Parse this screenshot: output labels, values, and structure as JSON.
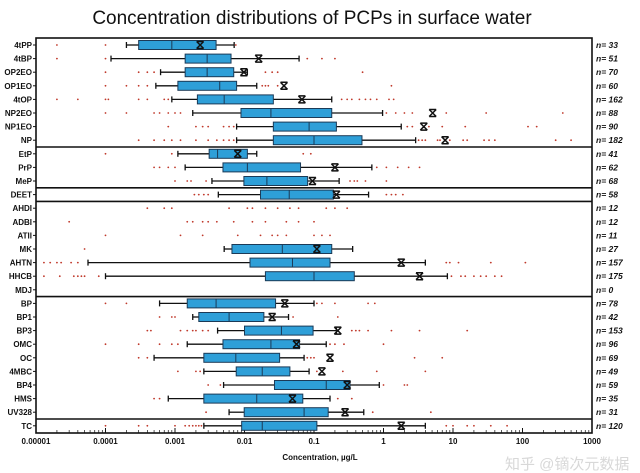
{
  "chart_data": {
    "type": "boxplot",
    "title": "Concentration distributions of PCPs in surface water",
    "xlabel": "Concentration, µg/L",
    "xscale": "log",
    "xlim": [
      1e-05,
      1000
    ],
    "xticks": [
      "0.00001",
      "0.0001",
      "0.001",
      "0.01",
      "0.1",
      "1",
      "10",
      "100",
      "1000"
    ],
    "grid": false,
    "colors": {
      "box": "#2e9fd8",
      "box_edge": "#1b3a57",
      "outlier": "#c0392b",
      "whisker": "#111111",
      "mean_marker": "#111111"
    },
    "groups_after": [
      "NP",
      "MeP",
      "DEET",
      "MDJ",
      "UV328"
    ],
    "series": [
      {
        "category": "4tPP",
        "n": "n= 33",
        "whisker_low": 0.0002,
        "q1": 0.0003,
        "median": 0.0009,
        "q3": 0.0039,
        "whisker_high": 0.0071,
        "mean": 0.0023,
        "outliers": [
          2e-05,
          0.0001,
          0.0075
        ]
      },
      {
        "category": "4tBP",
        "n": "n= 51",
        "whisker_low": 0.00012,
        "q1": 0.0014,
        "median": 0.0029,
        "q3": 0.0064,
        "whisker_high": 0.061,
        "mean": 0.016,
        "outliers": [
          2e-05,
          0.0001,
          0.08,
          0.13,
          0.2
        ]
      },
      {
        "category": "OP2EO",
        "n": "n= 70",
        "whisker_low": 0.00062,
        "q1": 0.0014,
        "median": 0.0029,
        "q3": 0.007,
        "whisker_high": 0.011,
        "mean": 0.0098,
        "outliers": [
          0.0001,
          0.0003,
          0.0004,
          0.0005,
          0.02,
          0.025,
          0.03,
          0.5
        ]
      },
      {
        "category": "OP1EO",
        "n": "n= 60",
        "whisker_low": 0.00053,
        "q1": 0.0011,
        "median": 0.0044,
        "q3": 0.0077,
        "whisker_high": 0.015,
        "mean": 0.037,
        "outliers": [
          0.0001,
          0.0002,
          0.0003,
          0.0004,
          0.018,
          0.02,
          0.022,
          0.03,
          1.3
        ]
      },
      {
        "category": "4tOP",
        "n": "n= 162",
        "whisker_low": 0.0009,
        "q1": 0.0021,
        "median": 0.0051,
        "q3": 0.026,
        "whisker_high": 0.18,
        "mean": 0.067,
        "outliers": [
          2e-05,
          4e-05,
          0.0001,
          0.00011,
          0.0003,
          0.0004,
          0.0007,
          0.0008,
          0.25,
          0.3,
          0.35,
          0.45,
          0.55,
          0.65,
          0.8,
          1.2,
          1.4
        ]
      },
      {
        "category": "NP2EO",
        "n": "n= 88",
        "whisker_low": 0.0018,
        "q1": 0.0089,
        "median": 0.024,
        "q3": 0.18,
        "whisker_high": 0.97,
        "mean": 5.1,
        "outliers": [
          0.0001,
          0.0002,
          0.0005,
          0.0006,
          0.0008,
          0.001,
          0.0012,
          1.1,
          1.5,
          2,
          2.6,
          8,
          30,
          380
        ]
      },
      {
        "category": "NP1EO",
        "n": "n= 90",
        "whisker_low": 0.0077,
        "q1": 0.026,
        "median": 0.085,
        "q3": 0.21,
        "whisker_high": 1.8,
        "mean": 3.8,
        "outliers": [
          0.0008,
          0.002,
          0.0025,
          0.003,
          0.005,
          0.006,
          0.007,
          2.2,
          2.6,
          4.5,
          7,
          15,
          120,
          160
        ]
      },
      {
        "category": "NP",
        "n": "n= 182",
        "whisker_low": 0.0077,
        "q1": 0.026,
        "median": 0.1,
        "q3": 0.49,
        "whisker_high": 2.9,
        "mean": 7.7,
        "outliers": [
          0.0003,
          0.0005,
          0.0007,
          0.0009,
          0.0012,
          0.002,
          0.003,
          0.004,
          0.005,
          0.006,
          0.007,
          3.2,
          3.6,
          4,
          6,
          6.5,
          9,
          14,
          16,
          28,
          33,
          40,
          300,
          500
        ]
      },
      {
        "category": "EtP",
        "n": "n= 41",
        "whisker_low": 0.0011,
        "q1": 0.0031,
        "median": 0.0041,
        "q3": 0.011,
        "whisker_high": 0.015,
        "mean": 0.008,
        "outliers": [
          0.0001,
          0.0009,
          0.07,
          0.09
        ]
      },
      {
        "category": "PrP",
        "n": "n= 62",
        "whisker_low": 0.0014,
        "q1": 0.0049,
        "median": 0.011,
        "q3": 0.064,
        "whisker_high": 0.68,
        "mean": 0.2,
        "outliers": [
          0.0005,
          0.0006,
          0.0008,
          0.001,
          0.8,
          1.1,
          1.6,
          2.3,
          3.3
        ]
      },
      {
        "category": "MeP",
        "n": "n= 68",
        "whisker_low": 0.0034,
        "q1": 0.0098,
        "median": 0.021,
        "q3": 0.081,
        "whisker_high": 0.23,
        "mean": 0.095,
        "outliers": [
          0.001,
          0.0015,
          0.0017,
          0.0028,
          0.33,
          0.38,
          0.42,
          0.55,
          1.1
        ]
      },
      {
        "category": "DEET",
        "n": "n= 58",
        "whisker_low": 0.0042,
        "q1": 0.017,
        "median": 0.044,
        "q3": 0.19,
        "whisker_high": 0.61,
        "mean": 0.21,
        "outliers": [
          0.0019,
          0.0022,
          0.0026,
          0.003,
          1.1,
          1.3,
          1.5,
          1.9
        ]
      },
      {
        "category": "AHDI",
        "n": "n= 12",
        "outliers": [
          0.0004,
          0.0007,
          0.0009,
          0.006,
          0.011,
          0.013,
          0.02,
          0.03,
          0.045,
          0.06,
          0.15,
          0.2,
          0.3
        ]
      },
      {
        "category": "ADBI",
        "n": "n= 12",
        "outliers": [
          3e-05,
          0.0015,
          0.0018,
          0.0025,
          0.003,
          0.004,
          0.007,
          0.013,
          0.02,
          0.04,
          0.06,
          0.1
        ]
      },
      {
        "category": "ATII",
        "n": "n= 11",
        "outliers": [
          0.0001,
          0.0012,
          0.0025,
          0.008,
          0.017,
          0.025,
          0.03,
          0.04,
          0.1,
          0.13,
          0.17
        ]
      },
      {
        "category": "MK",
        "n": "n= 27",
        "whisker_low": 0.0051,
        "q1": 0.0066,
        "median": 0.035,
        "q3": 0.18,
        "whisker_high": 0.36,
        "mean": 0.11,
        "outliers": [
          5e-05
        ]
      },
      {
        "category": "AHTN",
        "n": "n= 157",
        "whisker_low": 5.6e-05,
        "q1": 0.012,
        "median": 0.049,
        "q3": 0.17,
        "whisker_high": 4,
        "mean": 1.8,
        "outliers": [
          1.3e-05,
          1.6e-05,
          2e-05,
          2.3e-05,
          3.2e-05,
          4e-05,
          8,
          9,
          12,
          35,
          110
        ]
      },
      {
        "category": "HHCB",
        "n": "n= 175",
        "whisker_low": 0.0001,
        "q1": 0.02,
        "median": 0.1,
        "q3": 0.38,
        "whisker_high": 8.3,
        "mean": 3.3,
        "outliers": [
          1.3e-05,
          2.2e-05,
          3.5e-05,
          4e-05,
          4.5e-05,
          5e-05,
          8e-05,
          9.5,
          13,
          15,
          20,
          25,
          30,
          40,
          50
        ]
      },
      {
        "category": "MDJ",
        "n": "n= 0"
      },
      {
        "category": "BP",
        "n": "n= 78",
        "whisker_low": 0.0006,
        "q1": 0.0015,
        "median": 0.0039,
        "q3": 0.028,
        "whisker_high": 0.1,
        "mean": 0.038,
        "outliers": [
          0.0001,
          0.0002,
          0.11,
          0.13,
          0.2,
          0.6,
          0.75
        ]
      },
      {
        "category": "BP1",
        "n": "n= 42",
        "whisker_low": 0.0018,
        "q1": 0.0022,
        "median": 0.006,
        "q3": 0.019,
        "whisker_high": 0.043,
        "mean": 0.025,
        "outliers": [
          0.0006,
          0.0009,
          0.001,
          0.05,
          0.22
        ]
      },
      {
        "category": "BP3",
        "n": "n= 153",
        "whisker_low": 0.0041,
        "q1": 0.01,
        "median": 0.034,
        "q3": 0.097,
        "whisker_high": 0.21,
        "mean": 0.22,
        "outliers": [
          0.0004,
          0.00045,
          0.0012,
          0.0015,
          0.0018,
          0.002,
          0.0025,
          0.003,
          0.35,
          0.4,
          0.45,
          0.6,
          1.3,
          3.3,
          16
        ]
      },
      {
        "category": "OMC",
        "n": "n= 96",
        "whisker_low": 0.0015,
        "q1": 0.0049,
        "median": 0.024,
        "q3": 0.062,
        "whisker_high": 0.15,
        "mean": 0.056,
        "outliers": [
          0.0001,
          0.0003,
          0.0006,
          0.0009,
          0.0011,
          0.17,
          0.2,
          0.27,
          1
        ]
      },
      {
        "category": "OC",
        "n": "n= 69",
        "whisker_low": 0.0005,
        "q1": 0.0026,
        "median": 0.0075,
        "q3": 0.032,
        "whisker_high": 0.072,
        "mean": 0.17,
        "outliers": [
          0.0003,
          0.0004,
          0.08,
          0.09,
          0.1,
          2.8,
          7
        ]
      },
      {
        "category": "4MBC",
        "n": "n= 49",
        "whisker_low": 0.0026,
        "q1": 0.0076,
        "median": 0.018,
        "q3": 0.045,
        "whisker_high": 0.085,
        "mean": 0.13,
        "outliers": [
          0.0011,
          0.002,
          0.0023,
          0.11,
          0.26,
          0.8,
          4
        ]
      },
      {
        "category": "BP4",
        "n": "n= 59",
        "whisker_low": 0.005,
        "q1": 0.027,
        "median": 0.15,
        "q3": 0.33,
        "whisker_high": 0.87,
        "mean": 0.3,
        "outliers": [
          0.003,
          0.0045,
          1,
          2,
          2.2
        ]
      },
      {
        "category": "HMS",
        "n": "n= 35",
        "whisker_low": 0.0008,
        "q1": 0.0026,
        "median": 0.015,
        "q3": 0.069,
        "whisker_high": 0.17,
        "mean": 0.049,
        "outliers": [
          0.0005,
          0.0006,
          0.22,
          0.35
        ]
      },
      {
        "category": "UV328",
        "n": "n= 31",
        "whisker_low": 0.006,
        "q1": 0.0099,
        "median": 0.072,
        "q3": 0.16,
        "whisker_high": 0.52,
        "mean": 0.28,
        "outliers": [
          0.0028,
          0.7,
          4.8
        ]
      },
      {
        "category": "TC",
        "n": "n= 120",
        "whisker_low": 0.0026,
        "q1": 0.0091,
        "median": 0.018,
        "q3": 0.11,
        "whisker_high": 4,
        "mean": 1.8,
        "outliers": [
          0.0001,
          0.0003,
          0.0004,
          0.001,
          0.0014,
          0.0016,
          0.0018,
          0.002,
          0.0022,
          0.0024,
          8,
          10,
          16,
          20,
          35,
          60
        ]
      }
    ]
  },
  "watermark": "知乎 @镝次元数据"
}
